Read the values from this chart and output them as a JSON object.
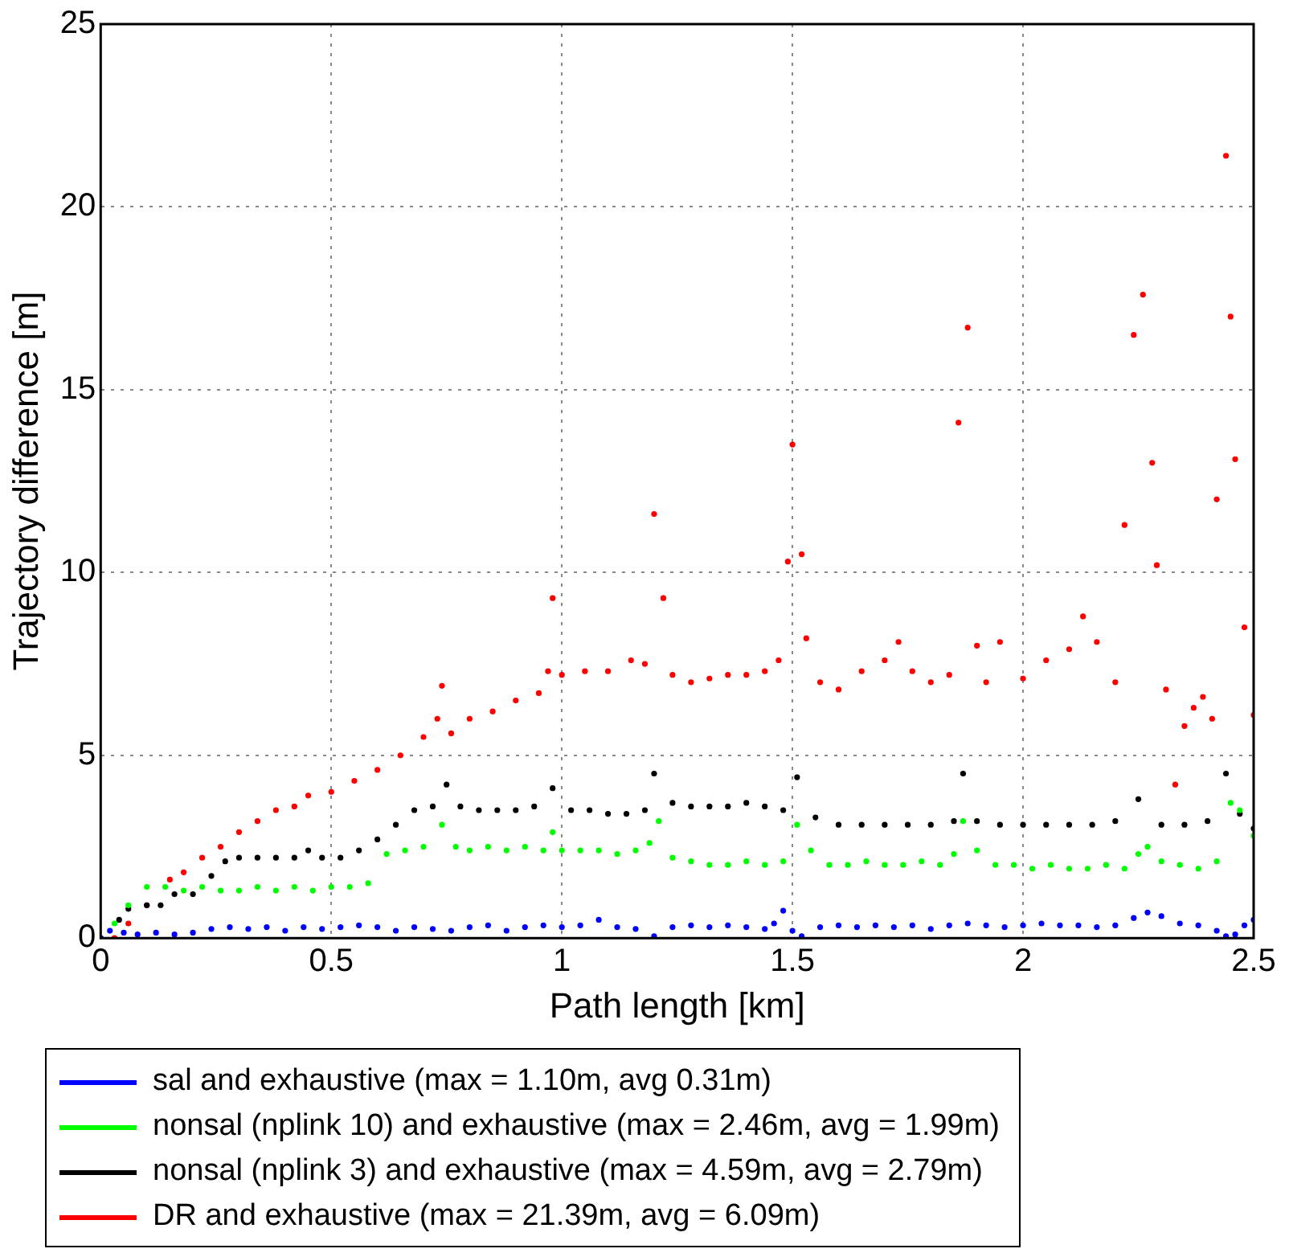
{
  "chart_data": {
    "type": "scatter",
    "xlabel": "Path length [km]",
    "ylabel": "Trajectory difference [m]",
    "xlim": [
      0,
      2.5
    ],
    "ylim": [
      0,
      25
    ],
    "xticks": [
      0,
      0.5,
      1,
      1.5,
      2,
      2.5
    ],
    "yticks": [
      0,
      5,
      10,
      15,
      20,
      25
    ],
    "grid": true,
    "legend": "bottom",
    "marker": "circle",
    "series": [
      {
        "name": "sal and exhaustive (max = 1.10m, avg 0.31m)",
        "color": "#0000ff",
        "x": [
          0,
          0.02,
          0.05,
          0.08,
          0.12,
          0.16,
          0.2,
          0.24,
          0.28,
          0.32,
          0.36,
          0.4,
          0.44,
          0.48,
          0.52,
          0.56,
          0.6,
          0.64,
          0.68,
          0.72,
          0.76,
          0.8,
          0.84,
          0.88,
          0.92,
          0.96,
          1.0,
          1.04,
          1.08,
          1.12,
          1.16,
          1.2,
          1.24,
          1.28,
          1.32,
          1.36,
          1.4,
          1.44,
          1.46,
          1.48,
          1.5,
          1.52,
          1.56,
          1.6,
          1.64,
          1.68,
          1.72,
          1.76,
          1.8,
          1.84,
          1.88,
          1.92,
          1.96,
          2.0,
          2.04,
          2.08,
          2.12,
          2.16,
          2.2,
          2.24,
          2.27,
          2.3,
          2.34,
          2.38,
          2.42,
          2.44,
          2.46,
          2.48,
          2.5
        ],
        "values": [
          0,
          0.2,
          0.15,
          0.1,
          0.15,
          0.1,
          0.15,
          0.25,
          0.3,
          0.25,
          0.3,
          0.2,
          0.3,
          0.25,
          0.3,
          0.35,
          0.3,
          0.2,
          0.3,
          0.25,
          0.2,
          0.3,
          0.35,
          0.2,
          0.3,
          0.35,
          0.3,
          0.35,
          0.5,
          0.3,
          0.25,
          0.05,
          0.3,
          0.35,
          0.3,
          0.35,
          0.3,
          0.25,
          0.4,
          0.75,
          0.2,
          0.05,
          0.3,
          0.35,
          0.3,
          0.35,
          0.3,
          0.35,
          0.25,
          0.35,
          0.4,
          0.35,
          0.3,
          0.35,
          0.4,
          0.35,
          0.35,
          0.3,
          0.35,
          0.55,
          0.7,
          0.6,
          0.4,
          0.35,
          0.2,
          0.05,
          0.1,
          0.35,
          0.5
        ]
      },
      {
        "name": "nonsal (nplink 10) and exhaustive (max = 2.46m, avg = 1.99m)",
        "color": "#00ff00",
        "x": [
          0,
          0.03,
          0.06,
          0.1,
          0.14,
          0.18,
          0.22,
          0.26,
          0.3,
          0.34,
          0.38,
          0.42,
          0.46,
          0.5,
          0.54,
          0.58,
          0.62,
          0.66,
          0.7,
          0.74,
          0.77,
          0.8,
          0.84,
          0.88,
          0.92,
          0.96,
          0.98,
          1.0,
          1.04,
          1.08,
          1.12,
          1.16,
          1.19,
          1.21,
          1.24,
          1.28,
          1.32,
          1.36,
          1.4,
          1.44,
          1.48,
          1.51,
          1.54,
          1.58,
          1.62,
          1.66,
          1.7,
          1.74,
          1.78,
          1.82,
          1.85,
          1.87,
          1.9,
          1.94,
          1.98,
          2.02,
          2.06,
          2.1,
          2.14,
          2.18,
          2.22,
          2.25,
          2.27,
          2.3,
          2.34,
          2.38,
          2.42,
          2.45,
          2.47,
          2.5
        ],
        "values": [
          0,
          0.4,
          0.9,
          1.4,
          1.4,
          1.3,
          1.4,
          1.3,
          1.3,
          1.4,
          1.3,
          1.4,
          1.3,
          1.4,
          1.4,
          1.5,
          2.3,
          2.4,
          2.5,
          3.1,
          2.5,
          2.4,
          2.5,
          2.4,
          2.5,
          2.4,
          2.9,
          2.4,
          2.4,
          2.4,
          2.3,
          2.4,
          2.6,
          3.2,
          2.2,
          2.1,
          2.0,
          2.0,
          2.1,
          2.0,
          2.1,
          3.1,
          2.4,
          2.0,
          2.0,
          2.1,
          2.0,
          2.0,
          2.1,
          2.0,
          2.3,
          3.2,
          2.4,
          2.0,
          2.0,
          1.9,
          2.0,
          1.9,
          1.9,
          2.0,
          1.9,
          2.3,
          2.5,
          2.1,
          2.0,
          1.9,
          2.1,
          3.7,
          3.5,
          2.8
        ]
      },
      {
        "name": "nonsal (nplink 3) and exhaustive (max = 4.59m, avg = 2.79m)",
        "color": "#000000",
        "x": [
          0,
          0.04,
          0.06,
          0.1,
          0.13,
          0.16,
          0.2,
          0.24,
          0.27,
          0.3,
          0.34,
          0.38,
          0.42,
          0.45,
          0.48,
          0.52,
          0.56,
          0.6,
          0.64,
          0.68,
          0.72,
          0.75,
          0.78,
          0.82,
          0.86,
          0.9,
          0.94,
          0.98,
          1.02,
          1.06,
          1.1,
          1.14,
          1.18,
          1.2,
          1.24,
          1.28,
          1.32,
          1.36,
          1.4,
          1.44,
          1.48,
          1.51,
          1.55,
          1.6,
          1.65,
          1.7,
          1.75,
          1.8,
          1.85,
          1.87,
          1.9,
          1.95,
          2.0,
          2.05,
          2.1,
          2.15,
          2.2,
          2.25,
          2.3,
          2.35,
          2.4,
          2.44,
          2.47,
          2.5
        ],
        "values": [
          0,
          0.5,
          0.8,
          0.9,
          0.9,
          1.2,
          1.2,
          1.7,
          2.1,
          2.2,
          2.2,
          2.2,
          2.2,
          2.4,
          2.2,
          2.2,
          2.4,
          2.7,
          3.1,
          3.5,
          3.6,
          4.2,
          3.6,
          3.5,
          3.5,
          3.5,
          3.6,
          4.1,
          3.5,
          3.5,
          3.4,
          3.4,
          3.5,
          4.5,
          3.7,
          3.6,
          3.6,
          3.6,
          3.7,
          3.6,
          3.5,
          4.4,
          3.3,
          3.1,
          3.1,
          3.1,
          3.1,
          3.1,
          3.2,
          4.5,
          3.2,
          3.1,
          3.1,
          3.1,
          3.1,
          3.1,
          3.2,
          3.8,
          3.1,
          3.1,
          3.2,
          4.5,
          3.4,
          3.0
        ]
      },
      {
        "name": "DR and exhaustive (max = 21.39m, avg = 6.09m)",
        "color": "#ff0000",
        "x": [
          0.03,
          0.06,
          0.1,
          0.15,
          0.18,
          0.22,
          0.26,
          0.3,
          0.34,
          0.38,
          0.42,
          0.45,
          0.5,
          0.55,
          0.6,
          0.65,
          0.7,
          0.73,
          0.74,
          0.76,
          0.8,
          0.85,
          0.9,
          0.95,
          0.97,
          0.98,
          1.0,
          1.05,
          1.1,
          1.15,
          1.18,
          1.2,
          1.22,
          1.24,
          1.28,
          1.32,
          1.36,
          1.4,
          1.44,
          1.47,
          1.49,
          1.5,
          1.52,
          1.53,
          1.56,
          1.6,
          1.65,
          1.7,
          1.73,
          1.76,
          1.8,
          1.84,
          1.86,
          1.88,
          1.9,
          1.92,
          1.95,
          2.0,
          2.05,
          2.1,
          2.13,
          2.16,
          2.2,
          2.22,
          2.24,
          2.26,
          2.28,
          2.29,
          2.31,
          2.33,
          2.35,
          2.37,
          2.39,
          2.41,
          2.42,
          2.44,
          2.45,
          2.46,
          2.48,
          2.5
        ],
        "values": [
          0,
          0.4,
          0.9,
          1.6,
          1.8,
          2.2,
          2.5,
          2.9,
          3.2,
          3.5,
          3.6,
          3.9,
          4.0,
          4.3,
          4.6,
          5.0,
          5.5,
          6.0,
          6.9,
          5.6,
          6.0,
          6.2,
          6.5,
          6.7,
          7.3,
          9.3,
          7.2,
          7.3,
          7.3,
          7.6,
          7.5,
          11.6,
          9.3,
          7.2,
          7.0,
          7.1,
          7.2,
          7.2,
          7.3,
          7.6,
          10.3,
          13.5,
          10.5,
          8.2,
          7.0,
          6.8,
          7.3,
          7.6,
          8.1,
          7.3,
          7.0,
          7.2,
          14.1,
          16.7,
          8.0,
          7.0,
          8.1,
          7.1,
          7.6,
          7.9,
          8.8,
          8.1,
          7.0,
          11.3,
          16.5,
          17.6,
          13.0,
          10.2,
          6.8,
          4.2,
          5.8,
          6.3,
          6.6,
          6.0,
          12.0,
          21.4,
          17.0,
          13.1,
          8.5,
          6.1
        ]
      }
    ]
  }
}
